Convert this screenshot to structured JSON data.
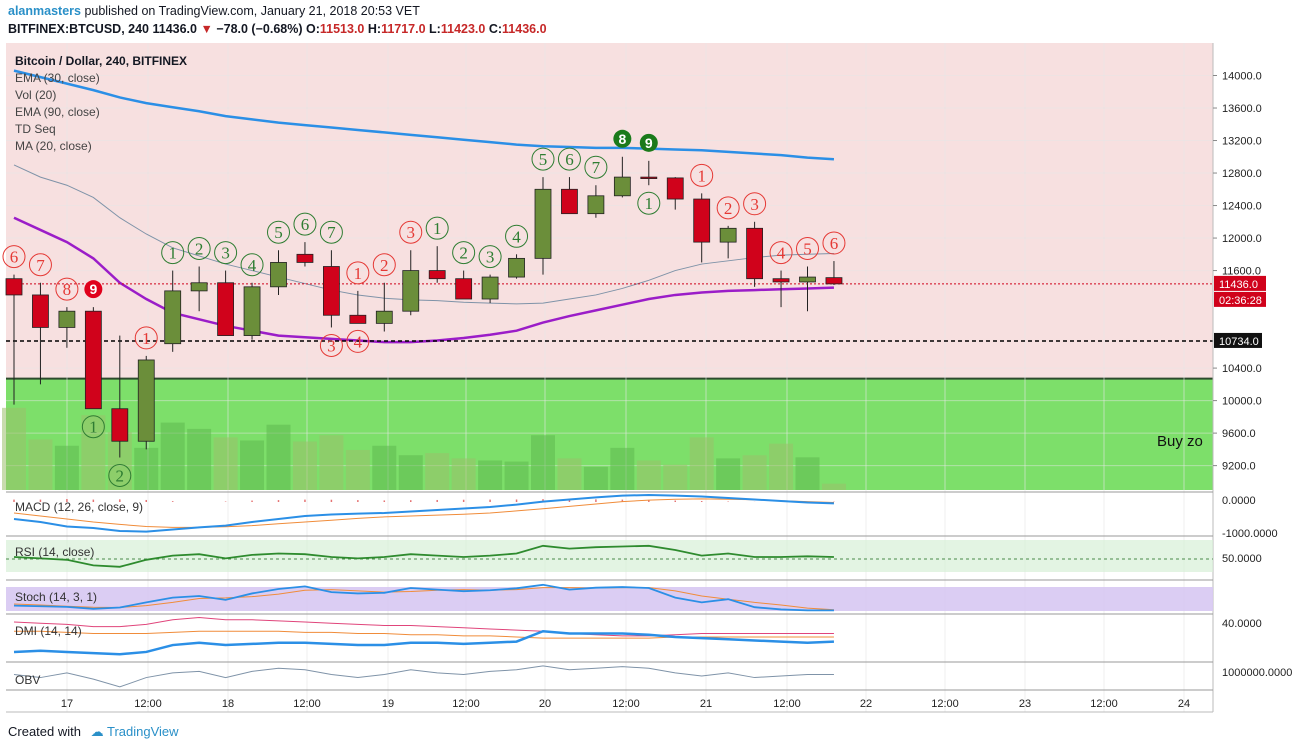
{
  "header": {
    "author": "alanmasters",
    "published": "published on TradingView.com, January 21, 2018 20:53 VET",
    "symbol": "BITFINEX:BTCUSD, 240",
    "last": "11436.0",
    "change": "−78.0 (−0.68%)",
    "o_label": "O:",
    "o": "11513.0",
    "h_label": "H:",
    "h": "11717.0",
    "l_label": "L:",
    "l": "11423.0",
    "c_label": "C:",
    "c": "11436.0"
  },
  "legend": [
    "Bitcoin / Dollar, 240, BITFINEX",
    "EMA (30, close)",
    "Vol (20)",
    "EMA (90, close)",
    "TD Seq",
    "MA (20, close)"
  ],
  "price_axis": {
    "ticks": [
      "14000.0",
      "13600.0",
      "13200.0",
      "12800.0",
      "12400.0",
      "12000.0",
      "11600.0",
      "10400.0",
      "10000.0",
      "9600.0",
      "9200.0"
    ],
    "last_price_label": "11436.0",
    "countdown_label": "02:36:28",
    "marked_level_label": "10734.0"
  },
  "zone_label": "Buy zo",
  "time_axis": [
    "17",
    "12:00",
    "18",
    "12:00",
    "19",
    "12:00",
    "20",
    "12:00",
    "21",
    "12:00",
    "22",
    "12:00",
    "23",
    "12:00",
    "24"
  ],
  "indicators": {
    "macd": {
      "title": "MACD (12, 26, close, 9)",
      "ticks": [
        "0.0000",
        "-1000.0000"
      ]
    },
    "rsi": {
      "title": "RSI (14, close)",
      "ticks": [
        "50.0000"
      ]
    },
    "stoch": {
      "title": "Stoch (14, 3, 1)"
    },
    "dmi": {
      "title": "DMI (14, 14)",
      "ticks": [
        "40.0000"
      ]
    },
    "obv": {
      "title": "OBV",
      "ticks": [
        "1000000.0000"
      ]
    }
  },
  "footer": {
    "created": "Created with",
    "brand": "TradingView"
  },
  "colors": {
    "up": "#6b8e3a",
    "down": "#d0021b",
    "ema30": "#9b1dc8",
    "ema90": "#2b8fe6",
    "ma20": "#7f93a8",
    "buy_zone": "#7ddf6a",
    "upper_bg": "#f7e0e0",
    "td_green": "#2e7d32",
    "td_red": "#e53935"
  },
  "chart_data": {
    "type": "candlestick",
    "title": "Bitcoin / Dollar, 240, BITFINEX",
    "timeframe": "240",
    "x_axis_ticks": [
      "17",
      "12:00",
      "18",
      "12:00",
      "19",
      "12:00",
      "20",
      "12:00",
      "21",
      "12:00",
      "22",
      "12:00",
      "23",
      "12:00",
      "24"
    ],
    "ylim": [
      8900,
      14400
    ],
    "candles": [
      {
        "o": 11500,
        "h": 11550,
        "l": 9950,
        "c": 11300
      },
      {
        "o": 11300,
        "h": 11450,
        "l": 10200,
        "c": 10900
      },
      {
        "o": 10900,
        "h": 11150,
        "l": 10650,
        "c": 11100
      },
      {
        "o": 11100,
        "h": 11150,
        "l": 9900,
        "c": 9900
      },
      {
        "o": 9900,
        "h": 10800,
        "l": 9300,
        "c": 9500
      },
      {
        "o": 9500,
        "h": 10550,
        "l": 9400,
        "c": 10500
      },
      {
        "o": 10700,
        "h": 11600,
        "l": 10600,
        "c": 11350
      },
      {
        "o": 11350,
        "h": 11650,
        "l": 11100,
        "c": 11450
      },
      {
        "o": 11450,
        "h": 11600,
        "l": 10800,
        "c": 10800
      },
      {
        "o": 10800,
        "h": 11450,
        "l": 10750,
        "c": 11400
      },
      {
        "o": 11400,
        "h": 11850,
        "l": 11300,
        "c": 11700
      },
      {
        "o": 11800,
        "h": 11950,
        "l": 11650,
        "c": 11700
      },
      {
        "o": 11650,
        "h": 11850,
        "l": 10900,
        "c": 11050
      },
      {
        "o": 11050,
        "h": 11350,
        "l": 10950,
        "c": 10950
      },
      {
        "o": 10950,
        "h": 11450,
        "l": 10850,
        "c": 11100
      },
      {
        "o": 11100,
        "h": 11850,
        "l": 11050,
        "c": 11600
      },
      {
        "o": 11600,
        "h": 11900,
        "l": 11450,
        "c": 11500
      },
      {
        "o": 11500,
        "h": 11600,
        "l": 11250,
        "c": 11250
      },
      {
        "o": 11250,
        "h": 11550,
        "l": 11200,
        "c": 11520
      },
      {
        "o": 11520,
        "h": 11800,
        "l": 11500,
        "c": 11750
      },
      {
        "o": 11750,
        "h": 12750,
        "l": 11550,
        "c": 12600
      },
      {
        "o": 12600,
        "h": 12750,
        "l": 12300,
        "c": 12300
      },
      {
        "o": 12300,
        "h": 12650,
        "l": 12250,
        "c": 12520
      },
      {
        "o": 12520,
        "h": 13000,
        "l": 12500,
        "c": 12750
      },
      {
        "o": 12750,
        "h": 12950,
        "l": 12650,
        "c": 12740
      },
      {
        "o": 12740,
        "h": 12750,
        "l": 12350,
        "c": 12480
      },
      {
        "o": 12480,
        "h": 12550,
        "l": 11700,
        "c": 11950
      },
      {
        "o": 11950,
        "h": 12150,
        "l": 11750,
        "c": 12120
      },
      {
        "o": 12120,
        "h": 12200,
        "l": 11400,
        "c": 11500
      },
      {
        "o": 11500,
        "h": 11600,
        "l": 11150,
        "c": 11460
      },
      {
        "o": 11460,
        "h": 11650,
        "l": 11100,
        "c": 11520
      },
      {
        "o": 11513,
        "h": 11717,
        "l": 11423,
        "c": 11436
      }
    ],
    "series": [
      {
        "name": "EMA (30, close)",
        "values": [
          12250,
          12100,
          11950,
          11750,
          11450,
          11250,
          11080,
          11000,
          10920,
          10860,
          10800,
          10780,
          10760,
          10740,
          10720,
          10720,
          10740,
          10770,
          10810,
          10860,
          10960,
          11040,
          11110,
          11180,
          11250,
          11300,
          11330,
          11350,
          11360,
          11370,
          11380,
          11390
        ]
      },
      {
        "name": "EMA (90, close)",
        "values": [
          14060,
          13980,
          13900,
          13820,
          13730,
          13660,
          13610,
          13560,
          13500,
          13460,
          13420,
          13390,
          13360,
          13330,
          13300,
          13270,
          13240,
          13210,
          13180,
          13150,
          13130,
          13120,
          13110,
          13110,
          13100,
          13090,
          13080,
          13060,
          13040,
          13020,
          12990,
          12970
        ]
      },
      {
        "name": "MA (20, close)",
        "values": [
          12900,
          12750,
          12650,
          12500,
          12250,
          12050,
          11880,
          11780,
          11680,
          11600,
          11520,
          11440,
          11360,
          11300,
          11260,
          11240,
          11230,
          11210,
          11200,
          11190,
          11200,
          11250,
          11300,
          11380,
          11480,
          11600,
          11680,
          11720,
          11760,
          11790,
          11800,
          11810
        ]
      }
    ],
    "volume": [
      0.78,
      0.48,
      0.42,
      0.71,
      0.55,
      0.4,
      0.64,
      0.58,
      0.5,
      0.47,
      0.62,
      0.46,
      0.52,
      0.38,
      0.42,
      0.33,
      0.35,
      0.3,
      0.28,
      0.27,
      0.52,
      0.3,
      0.22,
      0.4,
      0.28,
      0.24,
      0.5,
      0.3,
      0.33,
      0.44,
      0.31,
      0.06
    ],
    "price_lines": {
      "last": 11436.0,
      "marked": 10734.0,
      "buy_zone_top": 10270
    },
    "td_sequence": [
      {
        "i": 0,
        "label": "6",
        "color": "red",
        "pos": "above"
      },
      {
        "i": 1,
        "label": "7",
        "color": "red",
        "pos": "above"
      },
      {
        "i": 2,
        "label": "8",
        "color": "red",
        "pos": "above"
      },
      {
        "i": 3,
        "label": "9",
        "color": "red",
        "pos": "above",
        "filled": true
      },
      {
        "i": 3,
        "label": "1",
        "color": "green",
        "pos": "below"
      },
      {
        "i": 4,
        "label": "2",
        "color": "green",
        "pos": "below"
      },
      {
        "i": 5,
        "label": "1",
        "color": "red",
        "pos": "above"
      },
      {
        "i": 6,
        "label": "1",
        "color": "green",
        "pos": "above"
      },
      {
        "i": 7,
        "label": "2",
        "color": "green",
        "pos": "above"
      },
      {
        "i": 8,
        "label": "3",
        "color": "green",
        "pos": "above"
      },
      {
        "i": 9,
        "label": "4",
        "color": "green",
        "pos": "above"
      },
      {
        "i": 10,
        "label": "5",
        "color": "green",
        "pos": "above"
      },
      {
        "i": 11,
        "label": "6",
        "color": "green",
        "pos": "above"
      },
      {
        "i": 12,
        "label": "7",
        "color": "green",
        "pos": "above"
      },
      {
        "i": 13,
        "label": "1",
        "color": "red",
        "pos": "above"
      },
      {
        "i": 14,
        "label": "2",
        "color": "red",
        "pos": "above"
      },
      {
        "i": 12,
        "label": "3",
        "color": "red",
        "pos": "below"
      },
      {
        "i": 13,
        "label": "4",
        "color": "red",
        "pos": "below"
      },
      {
        "i": 15,
        "label": "3",
        "color": "red",
        "pos": "above"
      },
      {
        "i": 16,
        "label": "1",
        "color": "green",
        "pos": "above"
      },
      {
        "i": 17,
        "label": "2",
        "color": "green",
        "pos": "above"
      },
      {
        "i": 18,
        "label": "3",
        "color": "green",
        "pos": "above"
      },
      {
        "i": 19,
        "label": "4",
        "color": "green",
        "pos": "above"
      },
      {
        "i": 20,
        "label": "5",
        "color": "green",
        "pos": "above"
      },
      {
        "i": 21,
        "label": "6",
        "color": "green",
        "pos": "above"
      },
      {
        "i": 22,
        "label": "7",
        "color": "green",
        "pos": "above"
      },
      {
        "i": 23,
        "label": "8",
        "color": "green",
        "pos": "above",
        "filled": true
      },
      {
        "i": 24,
        "label": "9",
        "color": "green",
        "pos": "above",
        "filled": true
      },
      {
        "i": 24,
        "label": "1",
        "color": "green",
        "pos": "below"
      },
      {
        "i": 26,
        "label": "1",
        "color": "red",
        "pos": "above"
      },
      {
        "i": 27,
        "label": "2",
        "color": "red",
        "pos": "above"
      },
      {
        "i": 28,
        "label": "3",
        "color": "red",
        "pos": "above"
      },
      {
        "i": 29,
        "label": "4",
        "color": "red",
        "pos": "above"
      },
      {
        "i": 30,
        "label": "5",
        "color": "red",
        "pos": "above"
      },
      {
        "i": 31,
        "label": "6",
        "color": "red",
        "pos": "above"
      }
    ],
    "macd": {
      "macd": [
        -0.6,
        -0.7,
        -0.85,
        -0.9,
        -1.0,
        -1.02,
        -0.95,
        -0.88,
        -0.82,
        -0.7,
        -0.6,
        -0.5,
        -0.45,
        -0.42,
        -0.4,
        -0.35,
        -0.3,
        -0.25,
        -0.2,
        -0.12,
        -0.02,
        0.05,
        0.12,
        0.18,
        0.2,
        0.18,
        0.15,
        0.1,
        0.05,
        0.0,
        -0.05,
        -0.08
      ],
      "signal": [
        -0.4,
        -0.5,
        -0.6,
        -0.7,
        -0.78,
        -0.85,
        -0.88,
        -0.88,
        -0.86,
        -0.82,
        -0.76,
        -0.7,
        -0.64,
        -0.58,
        -0.53,
        -0.5,
        -0.47,
        -0.44,
        -0.4,
        -0.33,
        -0.26,
        -0.18,
        -0.1,
        -0.02,
        0.03,
        0.06,
        0.07,
        0.06,
        0.04,
        0.01,
        -0.02,
        -0.05
      ]
    },
    "rsi": [
      50,
      48,
      46,
      38,
      36,
      46,
      52,
      54,
      48,
      53,
      55,
      54,
      50,
      48,
      50,
      54,
      52,
      50,
      52,
      55,
      66,
      62,
      64,
      65,
      66,
      60,
      52,
      55,
      50,
      50,
      51,
      50
    ],
    "stoch": {
      "k": [
        20,
        18,
        16,
        10,
        14,
        30,
        45,
        50,
        38,
        58,
        72,
        80,
        62,
        58,
        60,
        75,
        70,
        65,
        68,
        74,
        85,
        70,
        76,
        78,
        75,
        45,
        30,
        40,
        15,
        8,
        5,
        5
      ],
      "d": [
        25,
        22,
        18,
        15,
        14,
        20,
        30,
        42,
        44,
        48,
        56,
        68,
        70,
        66,
        62,
        64,
        68,
        70,
        68,
        70,
        76,
        76,
        75,
        76,
        76,
        66,
        50,
        40,
        30,
        22,
        12,
        7
      ]
    },
    "dmi": {
      "plus": [
        12,
        13,
        12,
        11,
        10,
        12,
        18,
        20,
        18,
        19,
        20,
        20,
        19,
        18,
        18,
        20,
        20,
        19,
        20,
        21,
        30,
        28,
        28,
        28,
        27,
        25,
        24,
        23,
        22,
        21,
        20,
        21
      ],
      "minus": [
        38,
        37,
        36,
        34,
        34,
        36,
        40,
        42,
        40,
        40,
        39,
        38,
        37,
        36,
        35,
        35,
        34,
        33,
        32,
        31,
        30,
        28,
        27,
        26,
        26,
        27,
        28,
        28,
        28,
        28,
        28,
        28
      ],
      "adx": [
        30,
        30,
        29,
        28,
        28,
        28,
        29,
        30,
        30,
        30,
        30,
        29,
        29,
        28,
        28,
        27,
        27,
        26,
        26,
        25,
        24,
        24,
        24,
        24,
        24,
        25,
        25,
        25,
        25,
        25,
        25,
        25
      ]
    },
    "obv": [
      0.4,
      0.2,
      0.5,
      0.1,
      -0.4,
      0.2,
      0.5,
      0.6,
      0.2,
      0.6,
      0.8,
      0.7,
      0.4,
      0.2,
      0.4,
      0.7,
      0.5,
      0.4,
      0.6,
      0.7,
      0.95,
      0.7,
      0.8,
      0.9,
      0.8,
      0.5,
      0.3,
      0.5,
      0.2,
      0.3,
      0.4,
      0.4
    ]
  }
}
